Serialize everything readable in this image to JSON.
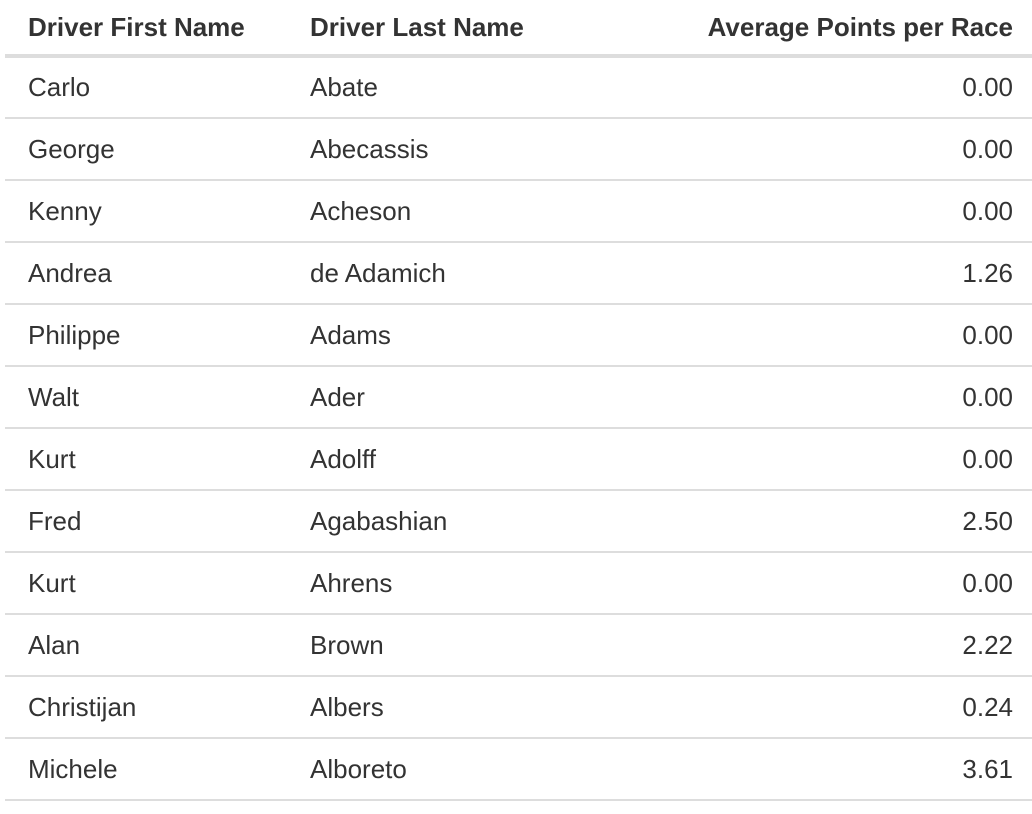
{
  "table": {
    "headers": [
      "Driver First Name",
      "Driver Last Name",
      "Average Points per Race"
    ],
    "rows": [
      [
        "Carlo",
        "Abate",
        "0.00"
      ],
      [
        "George",
        "Abecassis",
        "0.00"
      ],
      [
        "Kenny",
        "Acheson",
        "0.00"
      ],
      [
        "Andrea",
        "de Adamich",
        "1.26"
      ],
      [
        "Philippe",
        "Adams",
        "0.00"
      ],
      [
        "Walt",
        "Ader",
        "0.00"
      ],
      [
        "Kurt",
        "Adolff",
        "0.00"
      ],
      [
        "Fred",
        "Agabashian",
        "2.50"
      ],
      [
        "Kurt",
        "Ahrens",
        "0.00"
      ],
      [
        "Alan",
        "Brown",
        "2.22"
      ],
      [
        "Christijan",
        "Albers",
        "0.24"
      ],
      [
        "Michele",
        "Alboreto",
        "3.61"
      ]
    ]
  },
  "colors": {
    "text": "#333333",
    "border": "#dddddd",
    "background": "#ffffff"
  }
}
